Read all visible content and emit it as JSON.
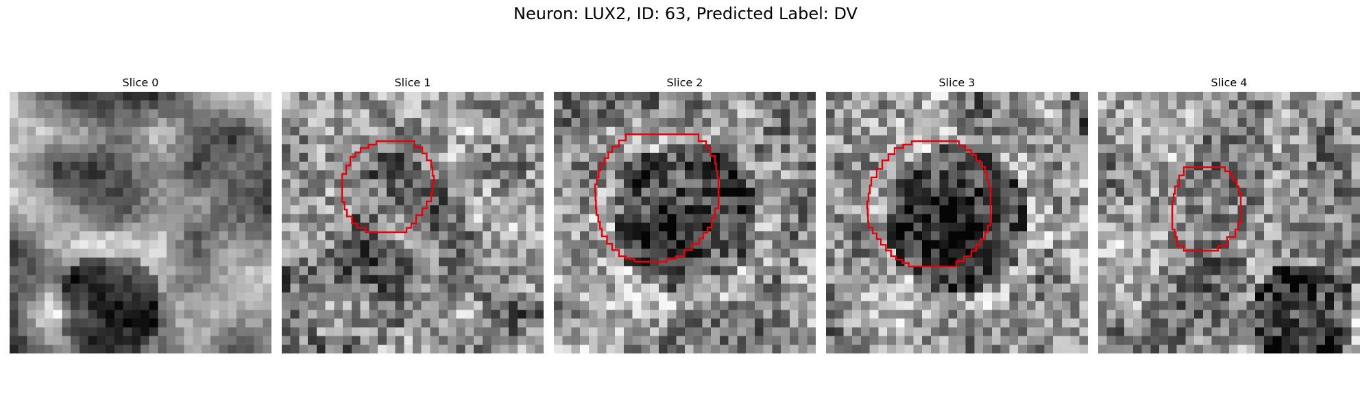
{
  "figure": {
    "title": "Neuron: LUX2, ID: 63, Predicted Label: DV"
  },
  "colors": {
    "contour": "#e8000b",
    "background": "#ffffff"
  },
  "slices": [
    {
      "label": "Slice 0",
      "seed": 11,
      "has_contour": false,
      "dark_blob": "bottom-center"
    },
    {
      "label": "Slice 1",
      "seed": 27,
      "has_contour": true,
      "dark_blob": "none"
    },
    {
      "label": "Slice 2",
      "seed": 43,
      "has_contour": true,
      "dark_blob": "center"
    },
    {
      "label": "Slice 3",
      "seed": 59,
      "has_contour": true,
      "dark_blob": "center"
    },
    {
      "label": "Slice 4",
      "seed": 71,
      "has_contour": true,
      "dark_blob": "bottom-right"
    }
  ]
}
